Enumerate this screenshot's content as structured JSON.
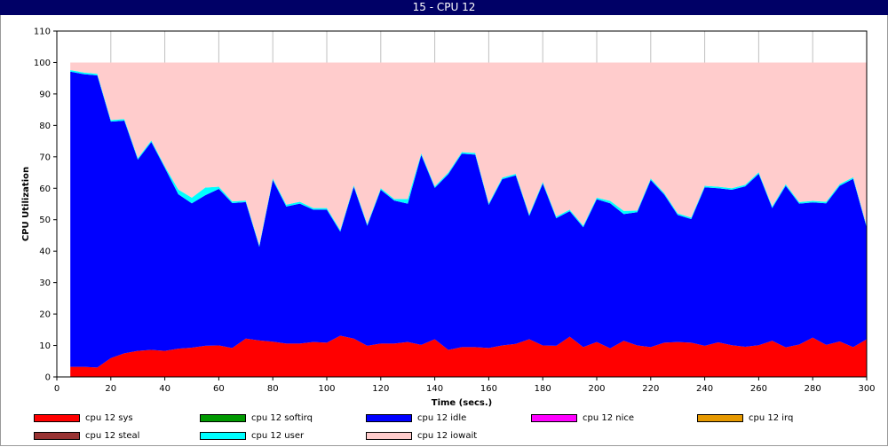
{
  "window": {
    "title": "15 - CPU 12"
  },
  "colors": {
    "plot_background": "#ffffff",
    "grid": "#c0c0c0",
    "axis": "#000000"
  },
  "chart_data": {
    "type": "area",
    "stacked": true,
    "title": "",
    "xlabel": "Time (secs.)",
    "ylabel": "CPU Utilization",
    "xlim": [
      0,
      300
    ],
    "ylim": [
      0,
      110
    ],
    "xticks": [
      0,
      20,
      40,
      60,
      80,
      100,
      120,
      140,
      160,
      180,
      200,
      220,
      240,
      260,
      280,
      300
    ],
    "yticks": [
      0,
      10,
      20,
      30,
      40,
      50,
      60,
      70,
      80,
      90,
      100,
      110
    ],
    "grid": true,
    "legend_position": "bottom",
    "x": [
      5,
      10,
      15,
      20,
      25,
      30,
      35,
      40,
      45,
      50,
      55,
      60,
      65,
      70,
      75,
      80,
      85,
      90,
      95,
      100,
      105,
      110,
      115,
      120,
      125,
      130,
      135,
      140,
      145,
      150,
      155,
      160,
      165,
      170,
      175,
      180,
      185,
      190,
      195,
      200,
      205,
      210,
      215,
      220,
      225,
      230,
      235,
      240,
      245,
      250,
      255,
      260,
      265,
      270,
      275,
      280,
      285,
      290,
      295,
      300
    ],
    "series": [
      {
        "name": "cpu 12 sys",
        "color": "#ff0000",
        "values": [
          3.2,
          3.2,
          3.0,
          6.0,
          7.5,
          8.3,
          8.6,
          8.3,
          9.0,
          9.3,
          9.9,
          10.0,
          9.2,
          12.2,
          11.6,
          11.2,
          10.6,
          10.6,
          11.1,
          10.9,
          13.1,
          12.2,
          9.9,
          10.6,
          10.6,
          11.1,
          10.2,
          12.0,
          8.6,
          9.5,
          9.5,
          9.2,
          10.0,
          10.5,
          12.0,
          10.0,
          9.9,
          12.8,
          9.5,
          11.1,
          9.1,
          11.5,
          10.0,
          9.5,
          10.9,
          11.1,
          10.9,
          9.9,
          11.0,
          10.1,
          9.6,
          10.1,
          11.5,
          9.4,
          10.3,
          12.5,
          10.2,
          11.3,
          9.5,
          12.0
        ]
      },
      {
        "name": "cpu 12 softirq",
        "color": "#009900",
        "values": [
          0,
          0,
          0,
          0,
          0,
          0,
          0,
          0,
          0,
          0,
          0,
          0,
          0,
          0,
          0,
          0,
          0,
          0,
          0,
          0,
          0,
          0,
          0,
          0,
          0,
          0,
          0,
          0,
          0,
          0,
          0,
          0,
          0,
          0,
          0,
          0,
          0,
          0,
          0,
          0,
          0,
          0,
          0,
          0,
          0,
          0,
          0,
          0,
          0,
          0,
          0,
          0,
          0,
          0,
          0,
          0,
          0,
          0,
          0,
          0
        ]
      },
      {
        "name": "cpu 12 idle",
        "color": "#0000ff",
        "values": [
          93.9,
          93.1,
          92.9,
          75.2,
          74.0,
          60.8,
          66.1,
          58.2,
          49.1,
          45.9,
          47.9,
          49.8,
          46.1,
          43.4,
          29.8,
          51.4,
          43.6,
          44.5,
          42.1,
          42.3,
          33.1,
          48.3,
          38.2,
          48.9,
          45.5,
          44.0,
          60.4,
          48.1,
          55.9,
          61.5,
          61.2,
          45.5,
          52.9,
          53.6,
          39.2,
          51.5,
          40.6,
          39.9,
          38.1,
          45.4,
          46.1,
          40.3,
          42.4,
          53.1,
          47.1,
          40.4,
          39.3,
          50.4,
          49.0,
          49.4,
          51.0,
          54.5,
          42.2,
          51.4,
          44.8,
          43.0,
          45.0,
          49.5,
          53.5,
          35.5
        ]
      },
      {
        "name": "cpu 12 nice",
        "color": "#ff00ff",
        "values": [
          0,
          0,
          0,
          0,
          0,
          0,
          0,
          0,
          0,
          0,
          0,
          0,
          0,
          0,
          0,
          0,
          0,
          0,
          0,
          0,
          0,
          0,
          0,
          0,
          0,
          0,
          0,
          0,
          0,
          0,
          0,
          0,
          0,
          0,
          0,
          0,
          0,
          0,
          0,
          0,
          0,
          0,
          0,
          0,
          0,
          0,
          0,
          0,
          0,
          0,
          0,
          0,
          0,
          0,
          0,
          0,
          0,
          0,
          0,
          0
        ]
      },
      {
        "name": "cpu 12 irq",
        "color": "#e69900",
        "values": [
          0,
          0,
          0,
          0,
          0,
          0,
          0,
          0,
          0,
          0,
          0,
          0,
          0,
          0,
          0,
          0,
          0,
          0,
          0,
          0,
          0,
          0,
          0,
          0,
          0,
          0,
          0,
          0,
          0,
          0,
          0,
          0,
          0,
          0,
          0,
          0,
          0,
          0,
          0,
          0,
          0,
          0,
          0,
          0,
          0,
          0,
          0,
          0,
          0,
          0,
          0,
          0,
          0,
          0,
          0,
          0,
          0,
          0,
          0,
          0
        ]
      },
      {
        "name": "cpu 12 steal",
        "color": "#993333",
        "values": [
          0,
          0,
          0,
          0,
          0,
          0,
          0,
          0,
          0,
          0,
          0,
          0,
          0,
          0,
          0,
          0,
          0,
          0,
          0,
          0,
          0,
          0,
          0,
          0,
          0,
          0,
          0,
          0,
          0,
          0,
          0,
          0,
          0,
          0,
          0,
          0,
          0,
          0,
          0,
          0,
          0,
          0,
          0,
          0,
          0,
          0,
          0,
          0,
          0,
          0,
          0,
          0,
          0,
          0,
          0,
          0,
          0,
          0,
          0,
          0
        ]
      },
      {
        "name": "cpu 12 user",
        "color": "#00ffff",
        "values": [
          0.5,
          0.5,
          0.5,
          0.5,
          0.5,
          0.5,
          0.5,
          0.5,
          1.5,
          1.8,
          2.4,
          0.7,
          0.5,
          0.5,
          0.5,
          0.5,
          0.6,
          0.6,
          0.5,
          0.5,
          0.5,
          0.5,
          0.5,
          0.5,
          0.5,
          1.5,
          0.5,
          0.5,
          0.5,
          0.5,
          0.5,
          0.5,
          0.5,
          0.5,
          0.5,
          0.5,
          0.5,
          0.5,
          0.5,
          0.5,
          0.8,
          1.0,
          0.5,
          0.5,
          0.5,
          0.5,
          0.5,
          0.5,
          0.5,
          0.5,
          0.5,
          0.5,
          0.5,
          0.5,
          0.5,
          0.5,
          0.5,
          0.5,
          0.5,
          0.5
        ]
      },
      {
        "name": "cpu 12 iowait",
        "color": "#ffcccc",
        "values": [
          2.4,
          3.2,
          3.6,
          18.3,
          18.0,
          30.4,
          24.8,
          33.0,
          40.4,
          43.0,
          39.8,
          39.5,
          44.2,
          43.9,
          58.1,
          36.9,
          45.2,
          44.3,
          46.3,
          46.3,
          53.3,
          39.0,
          51.4,
          40.0,
          43.4,
          43.4,
          28.9,
          39.4,
          35.0,
          28.5,
          28.8,
          44.8,
          36.6,
          35.4,
          48.3,
          38.0,
          49.0,
          46.8,
          51.9,
          43.0,
          44.0,
          47.2,
          47.1,
          36.9,
          41.5,
          48.0,
          49.3,
          39.2,
          39.5,
          40.0,
          38.9,
          34.9,
          45.8,
          38.7,
          44.4,
          44.0,
          44.3,
          38.7,
          36.5,
          52.0
        ]
      }
    ]
  }
}
